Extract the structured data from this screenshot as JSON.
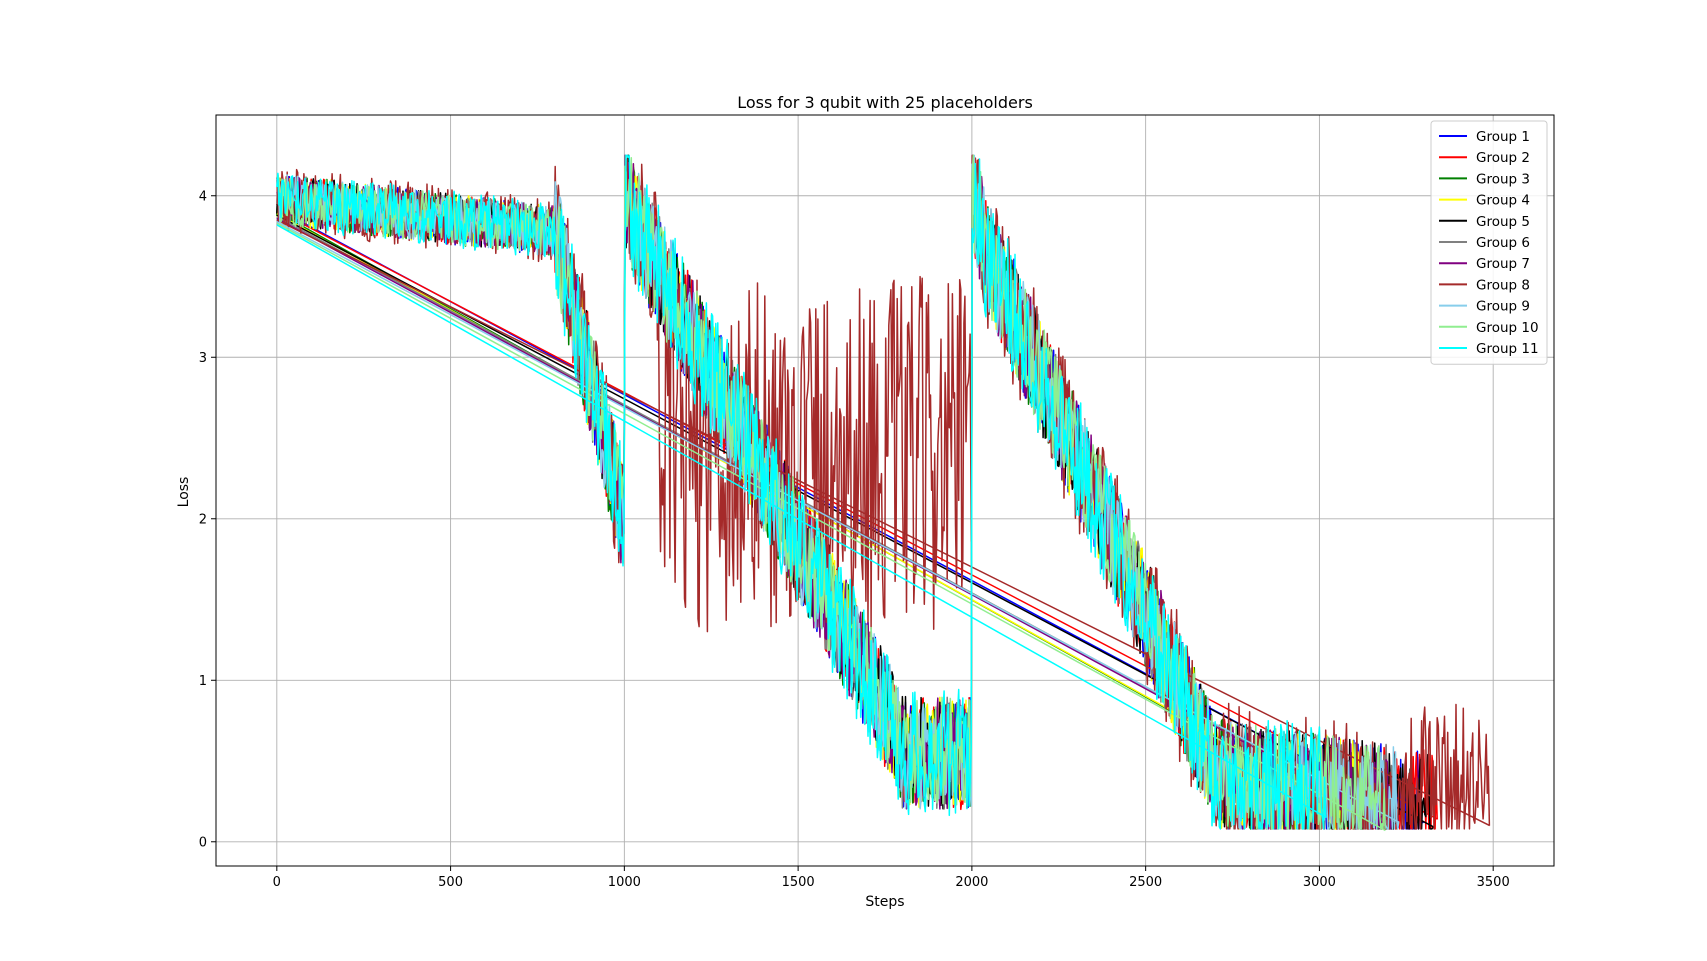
{
  "chart_data": {
    "type": "line",
    "title": "Loss for 3 qubit with 25 placeholders",
    "xlabel": "Steps",
    "ylabel": "Loss",
    "xlim": [
      -175,
      3675
    ],
    "ylim": [
      -0.15,
      4.5
    ],
    "xticks": [
      0,
      500,
      1000,
      1500,
      2000,
      2500,
      3000,
      3500
    ],
    "yticks": [
      0,
      1,
      2,
      3,
      4
    ],
    "grid": true,
    "legend_position": "top-right",
    "series": [
      {
        "name": "Group 1",
        "color": "#0000ff",
        "end": 3300,
        "final": 0.12,
        "noise": 0.35
      },
      {
        "name": "Group 2",
        "color": "#ff0000",
        "end": 3340,
        "final": 0.14,
        "noise": 0.35
      },
      {
        "name": "Group 3",
        "color": "#008000",
        "end": 3180,
        "final": 0.08,
        "noise": 0.35
      },
      {
        "name": "Group 4",
        "color": "#ffff00",
        "end": 3170,
        "final": 0.1,
        "noise": 0.35
      },
      {
        "name": "Group 5",
        "color": "#000000",
        "end": 3330,
        "final": 0.09,
        "noise": 0.35
      },
      {
        "name": "Group 6",
        "color": "#808080",
        "end": 3220,
        "final": 0.12,
        "noise": 0.35
      },
      {
        "name": "Group 7",
        "color": "#800080",
        "end": 3210,
        "final": 0.12,
        "noise": 0.35
      },
      {
        "name": "Group 8",
        "color": "#a52a2a",
        "end": 3490,
        "final": 0.1,
        "noise": 0.45
      },
      {
        "name": "Group 9",
        "color": "#87ceeb",
        "end": 3230,
        "final": 0.12,
        "noise": 0.35
      },
      {
        "name": "Group 10",
        "color": "#90ee90",
        "end": 3190,
        "final": 0.07,
        "noise": 0.35
      },
      {
        "name": "Group 11",
        "color": "#00ffff",
        "end": 3020,
        "final": 0.15,
        "noise": 0.4
      }
    ]
  }
}
